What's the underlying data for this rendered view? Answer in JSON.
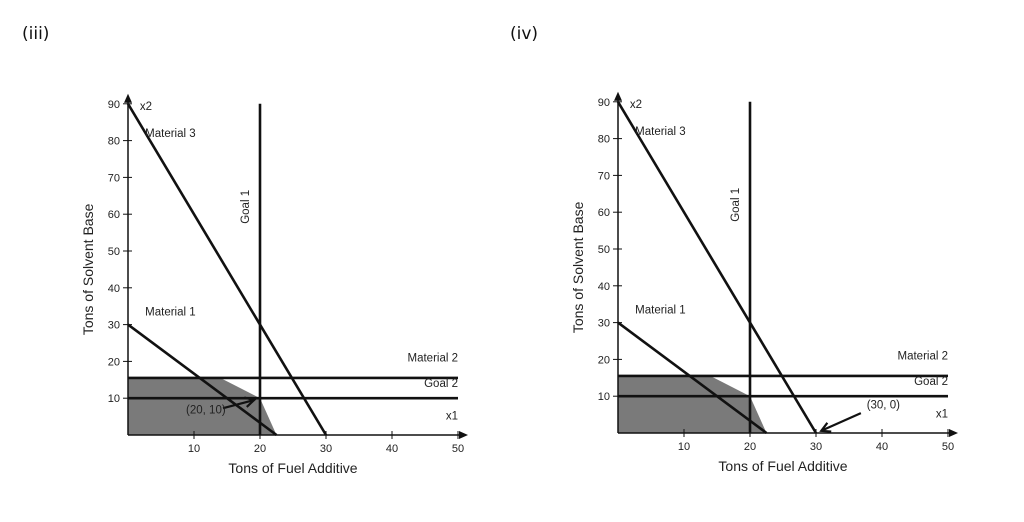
{
  "panels": [
    {
      "id": "iii",
      "label": "(iii)",
      "x_axis_title": "Tons of Fuel Additive",
      "y_axis_title": "Tons of Solvent Base",
      "x_axis_var": "x1",
      "y_axis_var": "x2",
      "lines": {
        "material3": "Material 3",
        "material1": "Material 1",
        "material2": "Material 2",
        "goal1": "Goal 1",
        "goal2": "Goal 2"
      },
      "annotation": "(20, 10)"
    },
    {
      "id": "iv",
      "label": "(iv)",
      "x_axis_title": "Tons of Fuel Additive",
      "y_axis_title": "Tons of Solvent Base",
      "x_axis_var": "x1",
      "y_axis_var": "x2",
      "lines": {
        "material3": "Material 3",
        "material1": "Material 1",
        "material2": "Material 2",
        "goal1": "Goal 1",
        "goal2": "Goal 2"
      },
      "annotation": "(30, 0)"
    }
  ],
  "axes": {
    "x_ticks": [
      10,
      20,
      30,
      40,
      50
    ],
    "y_ticks": [
      10,
      20,
      30,
      40,
      50,
      60,
      70,
      80,
      90
    ],
    "xlim": [
      0,
      50
    ],
    "ylim": [
      0,
      90
    ]
  },
  "colors": {
    "shade": "#7a7a7a",
    "line": "#111111"
  }
}
